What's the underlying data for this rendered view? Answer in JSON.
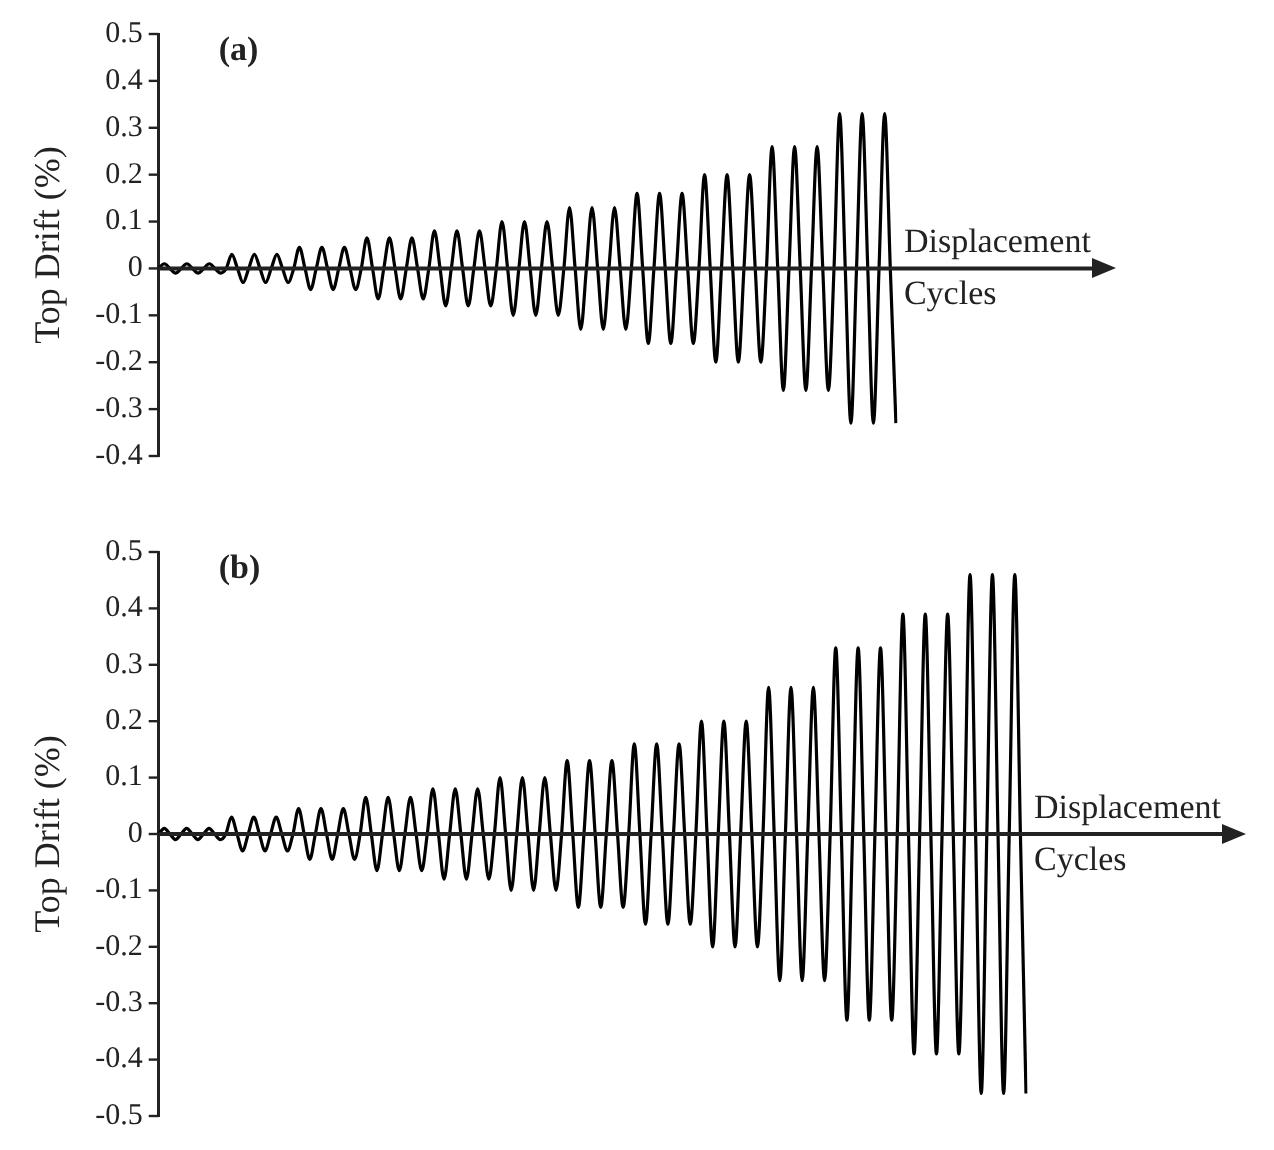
{
  "chart_data": [
    {
      "type": "line",
      "title": "(a)",
      "ylabel": "Top Drift (%)",
      "xlabel": "Cycles",
      "annotations": [
        "Displacement"
      ],
      "color": "#000000",
      "marker": "none",
      "grid": false,
      "tick_labels": "y",
      "ref_lines": [
        {
          "axis": "y",
          "value": 0
        }
      ],
      "ylim": [
        -0.4,
        0.5
      ],
      "yticks": [
        -0.4,
        -0.3,
        -0.2,
        -0.1,
        0,
        0.1,
        0.2,
        0.3,
        0.4,
        0.5
      ],
      "categories": [
        null,
        null,
        null,
        null,
        null,
        null,
        null,
        null,
        null,
        null,
        null,
        null,
        null,
        null,
        null,
        null,
        null,
        null,
        null,
        null,
        null,
        null,
        null,
        null,
        null,
        null,
        null,
        null,
        null,
        null,
        null,
        null,
        null,
        null,
        null,
        null,
        null,
        null,
        null,
        null,
        null,
        null,
        null,
        null,
        null,
        null,
        null,
        null,
        null,
        null,
        null,
        null,
        null,
        null,
        null,
        null,
        null,
        null,
        null,
        null,
        null,
        null,
        null,
        null,
        null,
        null,
        null,
        null,
        null,
        null,
        null,
        null,
        null,
        null,
        null,
        null,
        null,
        null,
        null,
        null,
        null,
        null,
        null,
        null,
        null,
        null,
        null,
        null,
        null,
        null,
        null,
        null,
        null,
        null,
        null,
        null,
        null,
        null,
        null,
        null,
        null,
        null,
        null,
        null,
        null,
        null,
        null,
        null,
        null,
        null,
        null,
        null,
        null,
        null,
        null,
        null,
        null,
        null,
        null,
        null,
        null,
        null,
        null,
        null,
        null,
        null,
        null,
        null,
        null,
        null,
        null,
        null
      ],
      "values": [
        0,
        0.01,
        0,
        -0.01,
        0,
        0.01,
        0,
        -0.01,
        0,
        0.01,
        0,
        -0.01,
        0,
        0.03,
        0,
        -0.03,
        0,
        0.03,
        0,
        -0.03,
        0,
        0.03,
        0,
        -0.03,
        0,
        0.045,
        0,
        -0.045,
        0,
        0.045,
        0,
        -0.045,
        0,
        0.045,
        0,
        -0.045,
        0,
        0.065,
        0,
        -0.065,
        0,
        0.065,
        0,
        -0.065,
        0,
        0.065,
        0,
        -0.065,
        0,
        0.08,
        0,
        -0.08,
        0,
        0.08,
        0,
        -0.08,
        0,
        0.08,
        0,
        -0.08,
        0,
        0.1,
        0,
        -0.1,
        0,
        0.1,
        0,
        -0.1,
        0,
        0.1,
        0,
        -0.1,
        0,
        0.13,
        0,
        -0.13,
        0,
        0.13,
        0,
        -0.13,
        0,
        0.13,
        0,
        -0.13,
        0,
        0.16,
        0,
        -0.16,
        0,
        0.16,
        0,
        -0.16,
        0,
        0.16,
        0,
        -0.16,
        0,
        0.2,
        0,
        -0.2,
        0,
        0.2,
        0,
        -0.2,
        0,
        0.2,
        0,
        -0.2,
        0,
        0.26,
        0,
        -0.26,
        0,
        0.26,
        0,
        -0.26,
        0,
        0.26,
        0,
        -0.26,
        0,
        0.33,
        0,
        -0.33,
        0,
        0.33,
        0,
        -0.33,
        0,
        0.33,
        0,
        -0.33
      ]
    },
    {
      "type": "line",
      "title": "(b)",
      "ylabel": "Top Drift (%)",
      "xlabel": "Cycles",
      "annotations": [
        "Displacement"
      ],
      "color": "#000000",
      "marker": "none",
      "grid": false,
      "tick_labels": "y",
      "ref_lines": [
        {
          "axis": "y",
          "value": 0
        }
      ],
      "ylim": [
        -0.5,
        0.5
      ],
      "yticks": [
        -0.5,
        -0.4,
        -0.3,
        -0.2,
        -0.1,
        0,
        0.1,
        0.2,
        0.3,
        0.4,
        0.5
      ],
      "categories": [
        null,
        null,
        null,
        null,
        null,
        null,
        null,
        null,
        null,
        null,
        null,
        null,
        null,
        null,
        null,
        null,
        null,
        null,
        null,
        null,
        null,
        null,
        null,
        null,
        null,
        null,
        null,
        null,
        null,
        null,
        null,
        null,
        null,
        null,
        null,
        null,
        null,
        null,
        null,
        null,
        null,
        null,
        null,
        null,
        null,
        null,
        null,
        null,
        null,
        null,
        null,
        null,
        null,
        null,
        null,
        null,
        null,
        null,
        null,
        null,
        null,
        null,
        null,
        null,
        null,
        null,
        null,
        null,
        null,
        null,
        null,
        null,
        null,
        null,
        null,
        null,
        null,
        null,
        null,
        null,
        null,
        null,
        null,
        null,
        null,
        null,
        null,
        null,
        null,
        null,
        null,
        null,
        null,
        null,
        null,
        null,
        null,
        null,
        null,
        null,
        null,
        null,
        null,
        null,
        null,
        null,
        null,
        null,
        null,
        null,
        null,
        null,
        null,
        null,
        null,
        null,
        null,
        null,
        null,
        null,
        null,
        null,
        null,
        null,
        null,
        null,
        null,
        null,
        null,
        null,
        null,
        null,
        null,
        null,
        null,
        null,
        null,
        null,
        null,
        null,
        null,
        null,
        null,
        null,
        null,
        null,
        null,
        null,
        null,
        null,
        null,
        null,
        null,
        null,
        null,
        null
      ],
      "values": [
        0,
        0.01,
        0,
        -0.01,
        0,
        0.01,
        0,
        -0.01,
        0,
        0.01,
        0,
        -0.01,
        0,
        0.03,
        0,
        -0.03,
        0,
        0.03,
        0,
        -0.03,
        0,
        0.03,
        0,
        -0.03,
        0,
        0.045,
        0,
        -0.045,
        0,
        0.045,
        0,
        -0.045,
        0,
        0.045,
        0,
        -0.045,
        0,
        0.065,
        0,
        -0.065,
        0,
        0.065,
        0,
        -0.065,
        0,
        0.065,
        0,
        -0.065,
        0,
        0.08,
        0,
        -0.08,
        0,
        0.08,
        0,
        -0.08,
        0,
        0.08,
        0,
        -0.08,
        0,
        0.1,
        0,
        -0.1,
        0,
        0.1,
        0,
        -0.1,
        0,
        0.1,
        0,
        -0.1,
        0,
        0.13,
        0,
        -0.13,
        0,
        0.13,
        0,
        -0.13,
        0,
        0.13,
        0,
        -0.13,
        0,
        0.16,
        0,
        -0.16,
        0,
        0.16,
        0,
        -0.16,
        0,
        0.16,
        0,
        -0.16,
        0,
        0.2,
        0,
        -0.2,
        0,
        0.2,
        0,
        -0.2,
        0,
        0.2,
        0,
        -0.2,
        0,
        0.26,
        0,
        -0.26,
        0,
        0.26,
        0,
        -0.26,
        0,
        0.26,
        0,
        -0.26,
        0,
        0.33,
        0,
        -0.33,
        0,
        0.33,
        0,
        -0.33,
        0,
        0.33,
        0,
        -0.33,
        0,
        0.39,
        0,
        -0.39,
        0,
        0.39,
        0,
        -0.39,
        0,
        0.39,
        0,
        -0.39,
        0,
        0.46,
        0,
        -0.46,
        0,
        0.46,
        0,
        -0.46,
        0,
        0.46,
        0,
        -0.46
      ]
    }
  ]
}
